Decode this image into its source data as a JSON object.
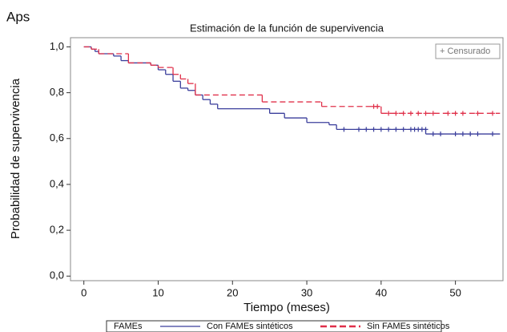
{
  "chart_data": {
    "type": "survival",
    "panel_label": "Aps",
    "title": "Estimación de la función de supervivencia",
    "x_label": "Tiempo (meses)",
    "y_label": "Probabilidad de supervivencia",
    "censored_label": "+ Censurado",
    "legend_title": "FAMEs",
    "xlim": [
      -1.8,
      56.4
    ],
    "ylim": [
      -0.02,
      1.04
    ],
    "xticks": [
      0,
      10,
      20,
      30,
      40,
      50
    ],
    "yticks": [
      {
        "value": 0,
        "label": "0,0"
      },
      {
        "value": 0.2,
        "label": "0,2"
      },
      {
        "value": 0.4,
        "label": "0,4"
      },
      {
        "value": 0.6,
        "label": "0,6"
      },
      {
        "value": 0.8,
        "label": "0,8"
      },
      {
        "value": 1,
        "label": "1,0"
      }
    ],
    "series": [
      {
        "name": "Con FAMEs sintéticos",
        "color": "#3b3f9c",
        "dashed": false,
        "x": [
          0,
          1,
          1.5,
          2,
          4,
          5,
          6,
          9,
          10,
          11,
          12,
          13,
          14,
          15,
          16,
          17,
          18,
          25,
          27,
          30,
          33,
          34,
          46,
          56
        ],
        "values": [
          1.0,
          0.99,
          0.98,
          0.97,
          0.96,
          0.94,
          0.93,
          0.92,
          0.9,
          0.88,
          0.85,
          0.82,
          0.81,
          0.79,
          0.77,
          0.75,
          0.73,
          0.71,
          0.69,
          0.67,
          0.66,
          0.64,
          0.62,
          0.62
        ],
        "censored": {
          "x": [
            35,
            37,
            38,
            39,
            40,
            41,
            42,
            43,
            44,
            44.5,
            45,
            45.5,
            46,
            47,
            48,
            50,
            51,
            52,
            53,
            55
          ],
          "values": [
            0.64,
            0.64,
            0.64,
            0.64,
            0.64,
            0.64,
            0.64,
            0.64,
            0.64,
            0.64,
            0.64,
            0.64,
            0.64,
            0.62,
            0.62,
            0.62,
            0.62,
            0.62,
            0.62,
            0.62
          ]
        }
      },
      {
        "name": "Sin FAMEs sintéticos",
        "color": "#e0304a",
        "dashed": true,
        "x": [
          0,
          1,
          2,
          6,
          9,
          10,
          12,
          13,
          14,
          15,
          24,
          32,
          40,
          56
        ],
        "values": [
          1.0,
          0.99,
          0.97,
          0.93,
          0.92,
          0.91,
          0.88,
          0.86,
          0.84,
          0.79,
          0.76,
          0.74,
          0.71,
          0.71
        ],
        "censored": {
          "x": [
            39,
            39.5,
            41,
            42,
            43,
            44,
            45,
            46,
            47,
            49,
            50,
            51,
            53,
            55
          ],
          "values": [
            0.74,
            0.74,
            0.71,
            0.71,
            0.71,
            0.71,
            0.71,
            0.71,
            0.71,
            0.71,
            0.71,
            0.71,
            0.71,
            0.71
          ]
        }
      }
    ]
  }
}
